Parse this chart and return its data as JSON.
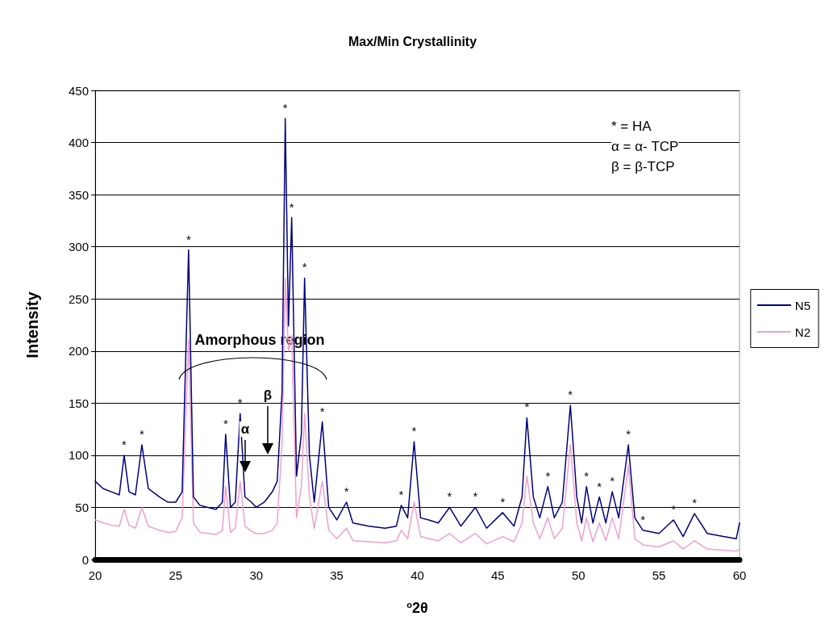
{
  "chart_data": {
    "type": "line",
    "title": "Max/Min Crystallinity",
    "xlabel": "$^{o}$2θ",
    "ylabel": "Intensity",
    "x": [
      20,
      20.5,
      21,
      21.5,
      21.8,
      22.1,
      22.5,
      22.9,
      23.3,
      24,
      24.5,
      25,
      25.4,
      25.8,
      26.1,
      26.5,
      27,
      27.5,
      27.9,
      28.1,
      28.4,
      28.7,
      29.0,
      29.3,
      29.7,
      30,
      30.5,
      31,
      31.3,
      31.6,
      31.8,
      32.0,
      32.2,
      32.5,
      32.8,
      33.0,
      33.3,
      33.6,
      34.1,
      34.5,
      35,
      35.6,
      36,
      37,
      38,
      38.7,
      39.0,
      39.4,
      39.8,
      40.2,
      40.7,
      41.3,
      42.0,
      42.7,
      43.6,
      44.3,
      45.3,
      46,
      46.5,
      46.8,
      47.2,
      47.6,
      48.1,
      48.5,
      49,
      49.5,
      49.9,
      50.2,
      50.5,
      50.9,
      51.3,
      51.7,
      52.1,
      52.5,
      53.1,
      53.5,
      54,
      55,
      55.9,
      56.5,
      57.2,
      58,
      59,
      59.8,
      60
    ],
    "series": [
      {
        "name": "N5",
        "color": "#000080",
        "values": [
          75,
          68,
          65,
          62,
          100,
          65,
          62,
          110,
          68,
          60,
          55,
          55,
          65,
          297,
          60,
          52,
          50,
          48,
          55,
          120,
          50,
          55,
          140,
          60,
          55,
          50,
          55,
          65,
          75,
          160,
          423,
          224,
          328,
          80,
          120,
          270,
          100,
          55,
          132,
          50,
          38,
          55,
          35,
          32,
          30,
          32,
          52,
          40,
          113,
          40,
          38,
          35,
          50,
          32,
          50,
          30,
          45,
          32,
          60,
          136,
          60,
          40,
          70,
          40,
          55,
          148,
          60,
          35,
          70,
          35,
          60,
          35,
          65,
          40,
          110,
          40,
          28,
          25,
          38,
          22,
          44,
          25,
          22,
          20,
          35
        ]
      },
      {
        "name": "N2",
        "color": "#f0a0cc",
        "values": [
          38,
          35,
          33,
          32,
          48,
          33,
          30,
          50,
          32,
          28,
          26,
          27,
          40,
          210,
          35,
          26,
          25,
          24,
          28,
          70,
          26,
          30,
          75,
          32,
          27,
          25,
          25,
          28,
          35,
          110,
          270,
          200,
          215,
          40,
          70,
          140,
          60,
          30,
          75,
          28,
          20,
          30,
          18,
          17,
          16,
          18,
          28,
          20,
          55,
          22,
          20,
          18,
          25,
          16,
          25,
          15,
          22,
          17,
          35,
          80,
          35,
          20,
          40,
          20,
          30,
          110,
          35,
          18,
          40,
          17,
          35,
          18,
          40,
          20,
          90,
          20,
          14,
          12,
          18,
          10,
          18,
          10,
          9,
          8,
          10
        ]
      }
    ],
    "xlim": [
      20,
      60
    ],
    "xticks": [
      20,
      25,
      30,
      35,
      40,
      45,
      50,
      55,
      60
    ],
    "ylim": [
      0,
      450
    ],
    "yticks": [
      0,
      50,
      100,
      150,
      200,
      250,
      300,
      350,
      400,
      450
    ],
    "grid": "y",
    "legend": "right",
    "marker": "none",
    "line_style": "solid",
    "annotations": [
      "* = HA",
      "α = α- TCP",
      "β = β-TCP",
      "Amorphous region",
      "α",
      "β",
      {
        "text": "*",
        "x": 21.8,
        "y": 100
      },
      {
        "text": "*",
        "x": 22.9,
        "y": 110
      },
      {
        "text": "*",
        "x": 25.8,
        "y": 297
      },
      {
        "text": "*",
        "x": 28.1,
        "y": 120
      },
      {
        "text": "*",
        "x": 29.0,
        "y": 140
      },
      {
        "text": "*",
        "x": 31.8,
        "y": 423
      },
      {
        "text": "*",
        "x": 32.2,
        "y": 328
      },
      {
        "text": "*",
        "x": 33.0,
        "y": 270
      },
      {
        "text": "*",
        "x": 34.1,
        "y": 132
      },
      {
        "text": "*",
        "x": 35.6,
        "y": 55
      },
      {
        "text": "*",
        "x": 39.0,
        "y": 52
      },
      {
        "text": "*",
        "x": 39.8,
        "y": 113
      },
      {
        "text": "*",
        "x": 42.0,
        "y": 50
      },
      {
        "text": "*",
        "x": 43.6,
        "y": 50
      },
      {
        "text": "*",
        "x": 45.3,
        "y": 45
      },
      {
        "text": "*",
        "x": 46.8,
        "y": 136
      },
      {
        "text": "*",
        "x": 48.1,
        "y": 70
      },
      {
        "text": "*",
        "x": 49.5,
        "y": 148
      },
      {
        "text": "*",
        "x": 50.5,
        "y": 70
      },
      {
        "text": "*",
        "x": 51.3,
        "y": 60
      },
      {
        "text": "*",
        "x": 52.1,
        "y": 65
      },
      {
        "text": "*",
        "x": 53.1,
        "y": 110
      },
      {
        "text": "*",
        "x": 54,
        "y": 28
      },
      {
        "text": "*",
        "x": 55.9,
        "y": 38
      },
      {
        "text": "*",
        "x": 57.2,
        "y": 44
      }
    ]
  }
}
